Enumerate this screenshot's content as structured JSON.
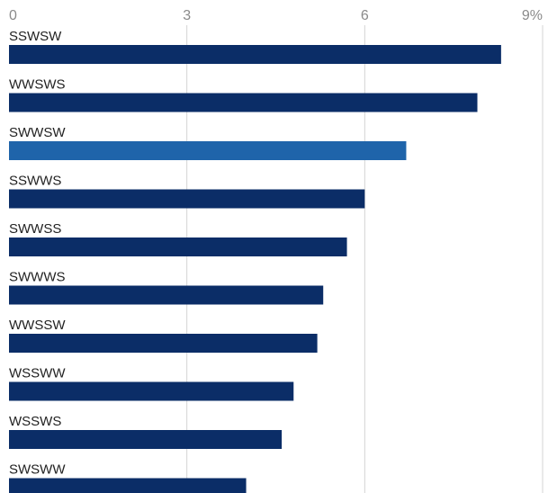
{
  "chart_data": {
    "type": "bar",
    "orientation": "horizontal",
    "categories": [
      "SSWSW",
      "WWSWS",
      "SWWSW",
      "SSWWS",
      "SWWSS",
      "SWWWS",
      "WWSSW",
      "WSSWW",
      "WSSWS",
      "SWSWW"
    ],
    "values": [
      8.3,
      7.9,
      6.7,
      6.0,
      5.7,
      5.3,
      5.2,
      4.8,
      4.6,
      4.0
    ],
    "highlight_index": 2,
    "xlim": [
      0,
      9
    ],
    "x_ticks": [
      0,
      3,
      6,
      9
    ],
    "x_tick_labels": [
      "0",
      "3",
      "6",
      "9%"
    ],
    "x_axis_position": "top",
    "grid": true,
    "title": "",
    "xlabel": "",
    "ylabel": "",
    "colors": {
      "bar": "#0b2d67",
      "highlight": "#1f64aa",
      "grid": "#d4d4d4",
      "tick_text": "#8a8a8a",
      "label_text": "#222222"
    }
  }
}
